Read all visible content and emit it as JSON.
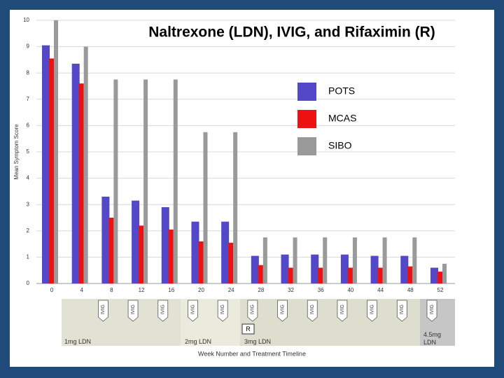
{
  "chart_data": {
    "type": "bar",
    "title": "Naltrexone (LDN), IVIG, and Rifaximin (R)",
    "y_label": "Mean Symptom Score",
    "x_label": "Week Number and Treatment Timeline",
    "categories": [
      "0",
      "4",
      "8",
      "12",
      "16",
      "20",
      "24",
      "28",
      "32",
      "36",
      "40",
      "44",
      "48",
      "52"
    ],
    "series": [
      {
        "name": "POTS",
        "color": "#5248c8",
        "values": [
          9.05,
          8.35,
          3.3,
          3.15,
          2.9,
          2.35,
          2.35,
          1.05,
          1.1,
          1.1,
          1.1,
          1.05,
          1.05,
          0.6
        ]
      },
      {
        "name": "MCAS",
        "color": "#ee1111",
        "values": [
          8.55,
          7.6,
          2.5,
          2.2,
          2.05,
          1.6,
          1.55,
          0.7,
          0.6,
          0.6,
          0.6,
          0.6,
          0.65,
          0.45
        ]
      },
      {
        "name": "SIBO",
        "color": "#9a9a9a",
        "values": [
          10,
          9,
          7.75,
          7.75,
          7.75,
          5.75,
          5.75,
          1.75,
          1.75,
          1.75,
          1.75,
          1.75,
          1.75,
          0.75
        ]
      }
    ],
    "ylim": [
      0,
      10
    ],
    "yticks": [
      0,
      1,
      2,
      3,
      4,
      5,
      6,
      7,
      8,
      9,
      10
    ],
    "grid": true,
    "timeline": {
      "ivig": [
        "IVIG",
        "IVIG",
        "IVIG",
        "IVIG",
        "IVIG",
        "IVIG",
        "IVIG",
        "IVIG",
        "IVIG",
        "IVIG",
        "IVIG",
        "IVIG"
      ],
      "rifaximin": "R",
      "phases": [
        "1mg LDN",
        "2mg LDN",
        "3mg LDN",
        "4.5mg LDN"
      ]
    }
  }
}
